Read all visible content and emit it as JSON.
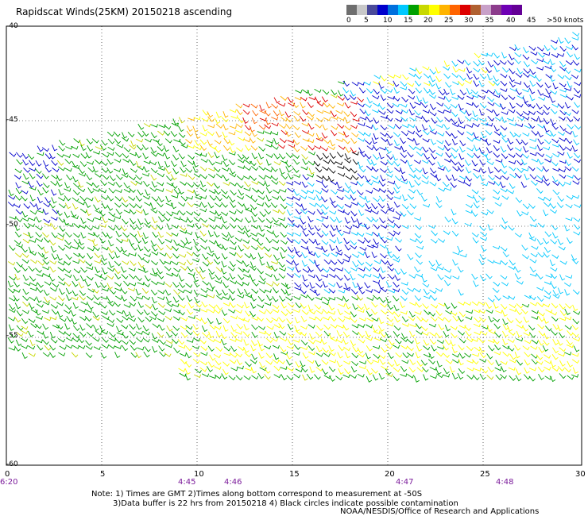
{
  "title": "Rapidscat Winds(25KM) 20150218 ascending",
  "scale": {
    "colors": [
      "#6e6e6e",
      "#c8c8c8",
      "#4a4a9a",
      "#0000cc",
      "#0070dd",
      "#00c8ff",
      "#00a000",
      "#c8d800",
      "#ffff00",
      "#ffb400",
      "#ff6400",
      "#dd0000",
      "#b06030",
      "#c8a0c8",
      "#8c3c8c",
      "#6e00b4",
      "#640096"
    ],
    "labels": [
      "0",
      "5",
      "10",
      "15",
      "20",
      "25",
      "30",
      "35",
      "40",
      "45",
      ">50 knots"
    ],
    "legend_color_values": [
      0,
      3,
      6,
      9,
      12,
      15,
      18,
      21,
      24,
      27,
      30,
      33,
      36,
      39,
      42,
      45,
      50
    ]
  },
  "axes": {
    "lat_labels": [
      "-40",
      "-45",
      "-50",
      "-55",
      "-60"
    ],
    "lon_labels": [
      "0",
      "5",
      "10",
      "15",
      "20",
      "25",
      "30"
    ],
    "time_labels": [
      "6:20",
      "4:45",
      "4:46",
      "4:47",
      "4:48"
    ]
  },
  "notes": {
    "line1": "Note: 1) Times are GMT 2)Times along bottom correspond to measurement at -50S",
    "line2": "3)Data buffer is 22 hrs from 20150218 4) Black circles indicate possible contamination",
    "credit": "NOAA/NESDIS/Office of Research and Applications"
  }
}
